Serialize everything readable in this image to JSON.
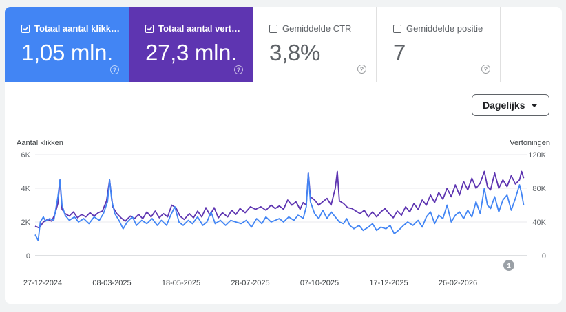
{
  "metrics": {
    "clicks": {
      "label": "Totaal aantal klikk…",
      "value": "1,05 mln.",
      "checked": true,
      "color": "#4285f4"
    },
    "impressions": {
      "label": "Totaal aantal vert…",
      "value": "27,3 mln.",
      "checked": true,
      "color": "#5e35b1"
    },
    "ctr": {
      "label": "Gemiddelde CTR",
      "value": "3,8%",
      "checked": false
    },
    "position": {
      "label": "Gemiddelde positie",
      "value": "7",
      "checked": false
    }
  },
  "granularity": {
    "selected": "Dagelijks"
  },
  "annotation": {
    "badge": "1"
  },
  "icons": {
    "checkbox": "checkbox-icon",
    "help": "help-icon",
    "dropdown": "chevron-down-icon"
  },
  "chart_data": {
    "type": "line",
    "left_axis": {
      "label": "Aantal klikken",
      "ticks": [
        "0",
        "2K",
        "4K",
        "6K"
      ],
      "range": [
        0,
        6000
      ]
    },
    "right_axis": {
      "label": "Vertoningen",
      "ticks": [
        "0",
        "40K",
        "80K",
        "120K"
      ],
      "range": [
        0,
        120000
      ]
    },
    "x_tick_labels": [
      "27-12-2024",
      "08-03-2025",
      "18-05-2025",
      "28-07-2025",
      "07-10-2025",
      "17-12-2025",
      "26-02-2026"
    ],
    "x_range_days": [
      0,
      475
    ],
    "grid": true,
    "series": [
      {
        "name": "Totaal aantal klikken",
        "axis": "left",
        "color": "#4285f4",
        "points": [
          [
            0,
            1250
          ],
          [
            3,
            900
          ],
          [
            5,
            2000
          ],
          [
            8,
            2300
          ],
          [
            10,
            2050
          ],
          [
            14,
            2200
          ],
          [
            18,
            2100
          ],
          [
            20,
            2800
          ],
          [
            22,
            3500
          ],
          [
            24,
            4500
          ],
          [
            26,
            3000
          ],
          [
            29,
            2400
          ],
          [
            33,
            2100
          ],
          [
            38,
            2300
          ],
          [
            42,
            2000
          ],
          [
            47,
            2200
          ],
          [
            52,
            1900
          ],
          [
            57,
            2300
          ],
          [
            62,
            2100
          ],
          [
            66,
            2500
          ],
          [
            70,
            3200
          ],
          [
            72,
            4500
          ],
          [
            74,
            3300
          ],
          [
            77,
            2500
          ],
          [
            81,
            2100
          ],
          [
            85,
            1600
          ],
          [
            89,
            2000
          ],
          [
            94,
            2300
          ],
          [
            98,
            1800
          ],
          [
            103,
            2100
          ],
          [
            108,
            1900
          ],
          [
            113,
            2200
          ],
          [
            118,
            1800
          ],
          [
            122,
            2100
          ],
          [
            127,
            1800
          ],
          [
            131,
            2400
          ],
          [
            135,
            2900
          ],
          [
            139,
            2000
          ],
          [
            143,
            1800
          ],
          [
            148,
            2100
          ],
          [
            152,
            1900
          ],
          [
            157,
            2300
          ],
          [
            162,
            1800
          ],
          [
            166,
            2000
          ],
          [
            170,
            2600
          ],
          [
            174,
            1900
          ],
          [
            179,
            2100
          ],
          [
            184,
            1800
          ],
          [
            189,
            2100
          ],
          [
            194,
            2000
          ],
          [
            199,
            1900
          ],
          [
            204,
            2100
          ],
          [
            209,
            1700
          ],
          [
            214,
            2200
          ],
          [
            219,
            1900
          ],
          [
            223,
            2300
          ],
          [
            228,
            2000
          ],
          [
            232,
            2100
          ],
          [
            236,
            2200
          ],
          [
            240,
            2000
          ],
          [
            245,
            2300
          ],
          [
            250,
            2100
          ],
          [
            254,
            2400
          ],
          [
            257,
            2300
          ],
          [
            259,
            2200
          ],
          [
            262,
            2900
          ],
          [
            264,
            4900
          ],
          [
            266,
            3200
          ],
          [
            270,
            2500
          ],
          [
            274,
            2200
          ],
          [
            278,
            2700
          ],
          [
            282,
            2200
          ],
          [
            286,
            2600
          ],
          [
            290,
            2300
          ],
          [
            294,
            2000
          ],
          [
            298,
            1900
          ],
          [
            301,
            2200
          ],
          [
            304,
            1800
          ],
          [
            308,
            1600
          ],
          [
            313,
            1800
          ],
          [
            317,
            1500
          ],
          [
            322,
            1700
          ],
          [
            326,
            1900
          ],
          [
            330,
            1500
          ],
          [
            334,
            1700
          ],
          [
            339,
            1600
          ],
          [
            343,
            1800
          ],
          [
            347,
            1300
          ],
          [
            351,
            1500
          ],
          [
            356,
            1800
          ],
          [
            360,
            2000
          ],
          [
            365,
            1800
          ],
          [
            370,
            2100
          ],
          [
            374,
            1700
          ],
          [
            378,
            2300
          ],
          [
            382,
            2600
          ],
          [
            386,
            1900
          ],
          [
            390,
            2400
          ],
          [
            394,
            2200
          ],
          [
            398,
            3000
          ],
          [
            402,
            2000
          ],
          [
            406,
            2400
          ],
          [
            410,
            2600
          ],
          [
            414,
            2200
          ],
          [
            418,
            2700
          ],
          [
            422,
            2300
          ],
          [
            426,
            3200
          ],
          [
            430,
            2500
          ],
          [
            434,
            4000
          ],
          [
            437,
            3000
          ],
          [
            440,
            2800
          ],
          [
            444,
            3500
          ],
          [
            448,
            2600
          ],
          [
            452,
            3300
          ],
          [
            456,
            3600
          ],
          [
            460,
            2700
          ],
          [
            464,
            3400
          ],
          [
            468,
            4200
          ],
          [
            470,
            3700
          ],
          [
            472,
            3000
          ]
        ]
      },
      {
        "name": "Totaal aantal vertoningen",
        "axis": "right",
        "color": "#5e35b1",
        "points": [
          [
            0,
            35000
          ],
          [
            4,
            33000
          ],
          [
            8,
            40000
          ],
          [
            12,
            43000
          ],
          [
            16,
            41000
          ],
          [
            19,
            49000
          ],
          [
            22,
            62000
          ],
          [
            24,
            90000
          ],
          [
            26,
            55000
          ],
          [
            29,
            50000
          ],
          [
            33,
            47000
          ],
          [
            37,
            52000
          ],
          [
            41,
            45000
          ],
          [
            45,
            49000
          ],
          [
            49,
            46000
          ],
          [
            53,
            51000
          ],
          [
            57,
            47000
          ],
          [
            61,
            51000
          ],
          [
            65,
            53000
          ],
          [
            69,
            65000
          ],
          [
            72,
            90000
          ],
          [
            75,
            58000
          ],
          [
            79,
            50000
          ],
          [
            83,
            45000
          ],
          [
            87,
            41000
          ],
          [
            92,
            47000
          ],
          [
            96,
            44000
          ],
          [
            100,
            49000
          ],
          [
            104,
            44000
          ],
          [
            108,
            52000
          ],
          [
            112,
            46000
          ],
          [
            116,
            53000
          ],
          [
            120,
            45000
          ],
          [
            124,
            50000
          ],
          [
            128,
            46000
          ],
          [
            132,
            60000
          ],
          [
            136,
            57000
          ],
          [
            140,
            47000
          ],
          [
            144,
            43000
          ],
          [
            149,
            50000
          ],
          [
            153,
            45000
          ],
          [
            157,
            53000
          ],
          [
            161,
            46000
          ],
          [
            165,
            57000
          ],
          [
            169,
            48000
          ],
          [
            173,
            57000
          ],
          [
            177,
            45000
          ],
          [
            181,
            51000
          ],
          [
            186,
            46000
          ],
          [
            190,
            54000
          ],
          [
            194,
            49000
          ],
          [
            198,
            56000
          ],
          [
            203,
            51000
          ],
          [
            208,
            58000
          ],
          [
            213,
            55000
          ],
          [
            218,
            58000
          ],
          [
            223,
            54000
          ],
          [
            228,
            60000
          ],
          [
            232,
            56000
          ],
          [
            236,
            59000
          ],
          [
            240,
            55000
          ],
          [
            244,
            66000
          ],
          [
            248,
            60000
          ],
          [
            252,
            64000
          ],
          [
            256,
            55000
          ],
          [
            259,
            63000
          ],
          [
            262,
            60000
          ],
          [
            264,
            98000
          ],
          [
            266,
            70000
          ],
          [
            270,
            66000
          ],
          [
            274,
            60000
          ],
          [
            278,
            64000
          ],
          [
            282,
            68000
          ],
          [
            286,
            60000
          ],
          [
            290,
            80000
          ],
          [
            292,
            100000
          ],
          [
            294,
            65000
          ],
          [
            298,
            62000
          ],
          [
            302,
            57000
          ],
          [
            306,
            56000
          ],
          [
            310,
            53000
          ],
          [
            314,
            50000
          ],
          [
            318,
            54000
          ],
          [
            322,
            46000
          ],
          [
            326,
            52000
          ],
          [
            330,
            46000
          ],
          [
            334,
            52000
          ],
          [
            338,
            56000
          ],
          [
            342,
            50000
          ],
          [
            346,
            45000
          ],
          [
            350,
            53000
          ],
          [
            354,
            48000
          ],
          [
            358,
            58000
          ],
          [
            362,
            52000
          ],
          [
            366,
            62000
          ],
          [
            370,
            55000
          ],
          [
            374,
            66000
          ],
          [
            378,
            60000
          ],
          [
            382,
            72000
          ],
          [
            386,
            63000
          ],
          [
            390,
            75000
          ],
          [
            394,
            67000
          ],
          [
            398,
            80000
          ],
          [
            402,
            70000
          ],
          [
            406,
            84000
          ],
          [
            410,
            72000
          ],
          [
            414,
            88000
          ],
          [
            418,
            78000
          ],
          [
            422,
            92000
          ],
          [
            426,
            80000
          ],
          [
            430,
            86000
          ],
          [
            434,
            100000
          ],
          [
            437,
            82000
          ],
          [
            440,
            78000
          ],
          [
            444,
            98000
          ],
          [
            448,
            80000
          ],
          [
            452,
            90000
          ],
          [
            456,
            82000
          ],
          [
            460,
            95000
          ],
          [
            464,
            85000
          ],
          [
            468,
            90000
          ],
          [
            470,
            100000
          ],
          [
            472,
            92000
          ]
        ]
      }
    ]
  }
}
